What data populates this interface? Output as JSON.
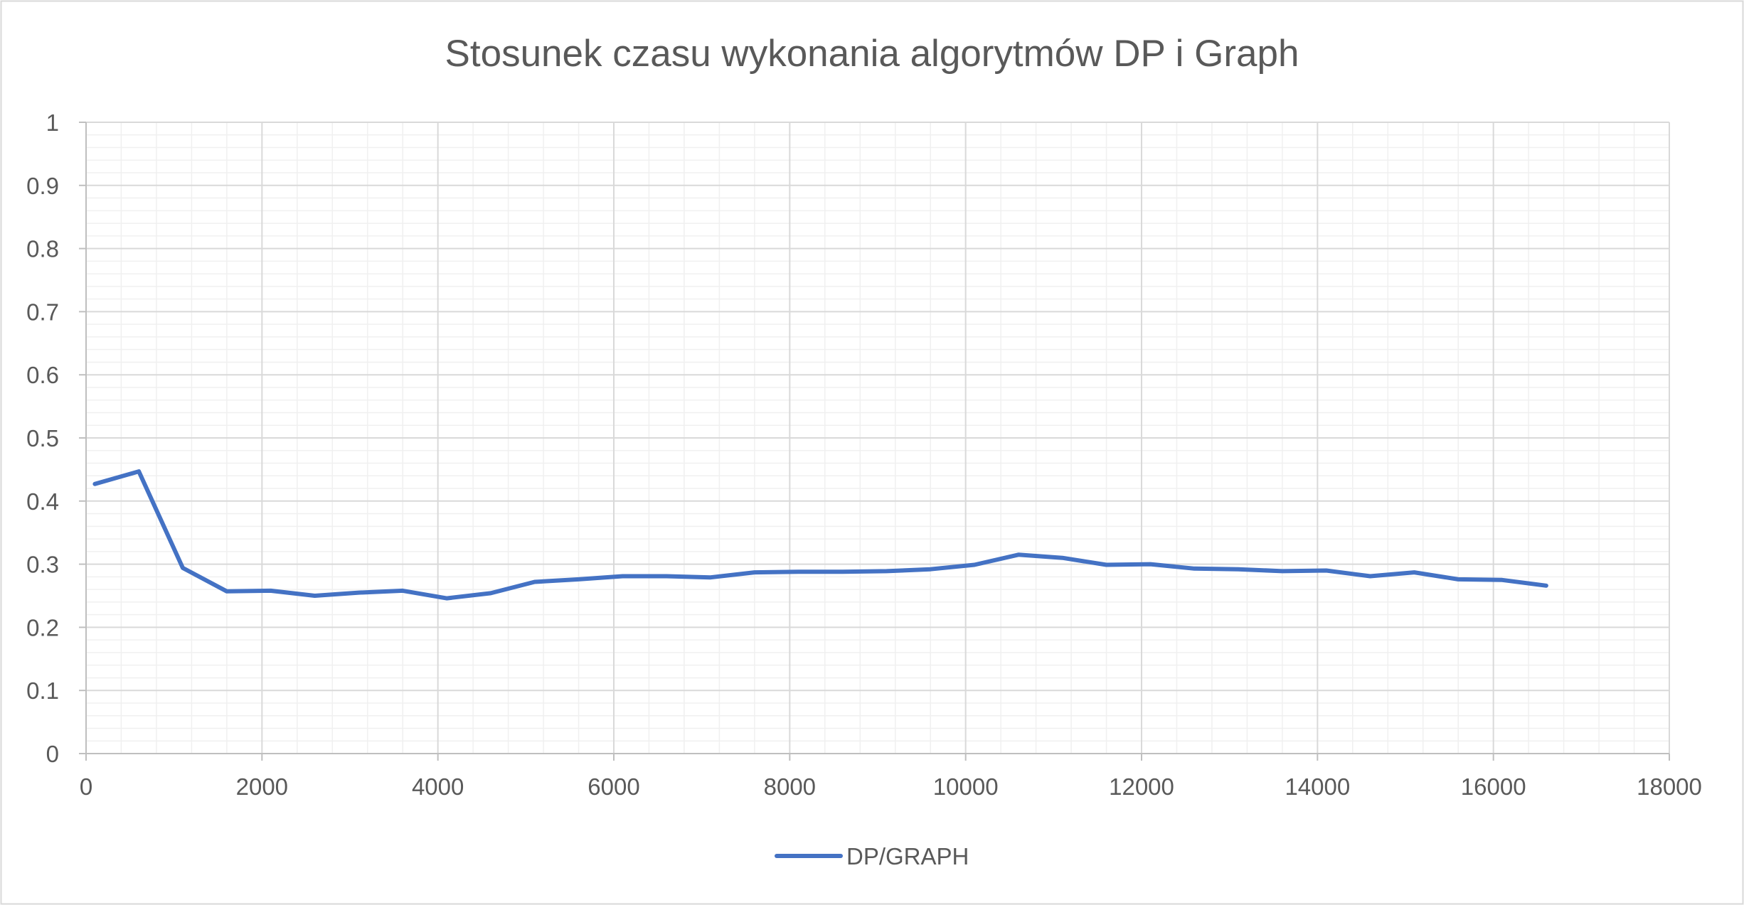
{
  "chart_data": {
    "type": "line",
    "title": "Stosunek czasu wykonania algorytmów DP i Graph",
    "xlabel": "",
    "ylabel": "",
    "xlim": [
      0,
      18000
    ],
    "ylim": [
      0,
      1
    ],
    "x_ticks": [
      "0",
      "2000",
      "4000",
      "6000",
      "8000",
      "10000",
      "12000",
      "14000",
      "16000",
      "18000"
    ],
    "y_ticks": [
      "0",
      "0.1",
      "0.2",
      "0.3",
      "0.4",
      "0.5",
      "0.6",
      "0.7",
      "0.8",
      "0.9",
      "1"
    ],
    "grid": true,
    "legend_position": "bottom",
    "series": [
      {
        "name": "DP/GRAPH",
        "color": "#4472C4",
        "points": [
          [
            100,
            0.427
          ],
          [
            600,
            0.447
          ],
          [
            1100,
            0.294
          ],
          [
            1600,
            0.257
          ],
          [
            2100,
            0.258
          ],
          [
            2600,
            0.25
          ],
          [
            3100,
            0.255
          ],
          [
            3600,
            0.258
          ],
          [
            4100,
            0.246
          ],
          [
            4600,
            0.254
          ],
          [
            5100,
            0.272
          ],
          [
            5600,
            0.276
          ],
          [
            6100,
            0.281
          ],
          [
            6600,
            0.281
          ],
          [
            7100,
            0.279
          ],
          [
            7600,
            0.287
          ],
          [
            8100,
            0.288
          ],
          [
            8600,
            0.288
          ],
          [
            9100,
            0.289
          ],
          [
            9600,
            0.292
          ],
          [
            10100,
            0.299
          ],
          [
            10600,
            0.315
          ],
          [
            11100,
            0.31
          ],
          [
            11600,
            0.299
          ],
          [
            12100,
            0.3
          ],
          [
            12600,
            0.293
          ],
          [
            13100,
            0.292
          ],
          [
            13600,
            0.289
          ],
          [
            14100,
            0.29
          ],
          [
            14600,
            0.281
          ],
          [
            15100,
            0.287
          ],
          [
            15600,
            0.276
          ],
          [
            16100,
            0.275
          ],
          [
            16600,
            0.266
          ]
        ]
      }
    ]
  },
  "colors": {
    "border": "#D9D9D9",
    "major_grid": "#D9D9D9",
    "minor_grid": "#F0F0F0",
    "axis": "#BFBFBF",
    "text": "#595959"
  }
}
